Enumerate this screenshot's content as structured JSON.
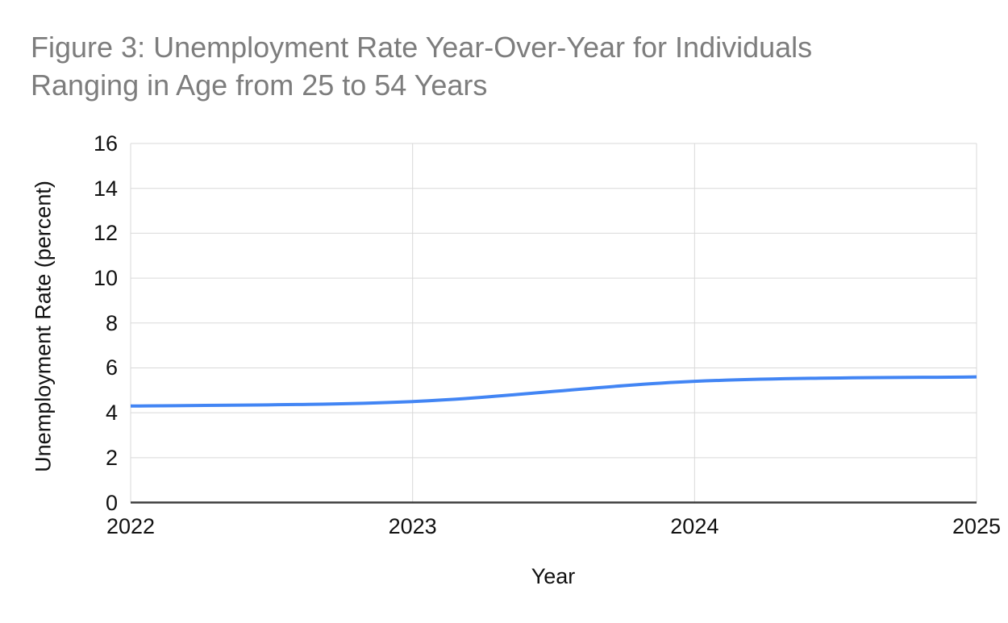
{
  "title": {
    "line1": "Figure 3: Unemployment Rate Year-Over-Year for Individuals",
    "line2": "Ranging in Age from 25 to 54 Years",
    "color": "#7d7d7d"
  },
  "chart_data": {
    "type": "line",
    "title": "Figure 3: Unemployment Rate Year-Over-Year for Individuals Ranging in Age from 25 to 54 Years",
    "x": [
      2022,
      2023,
      2024,
      2025
    ],
    "xticks": [
      "2022",
      "2023",
      "2024",
      "2025"
    ],
    "series": [
      {
        "name": "Unemployment Rate",
        "values": [
          4.3,
          4.5,
          5.4,
          5.6
        ]
      }
    ],
    "xlabel": "Year",
    "ylabel": "Unemployment Rate (percent)",
    "ylim": [
      0,
      16
    ],
    "yticks": [
      0,
      2,
      4,
      6,
      8,
      10,
      12,
      14,
      16
    ],
    "grid": true,
    "legend": "none",
    "smooth": true
  },
  "colors": {
    "background": "#ffffff",
    "title_text": "#7d7d7d",
    "gridline": "#d9d9d9",
    "axis_line": "#3c3c3c",
    "tick_label": "#111111",
    "series_line": "#4285f4"
  }
}
